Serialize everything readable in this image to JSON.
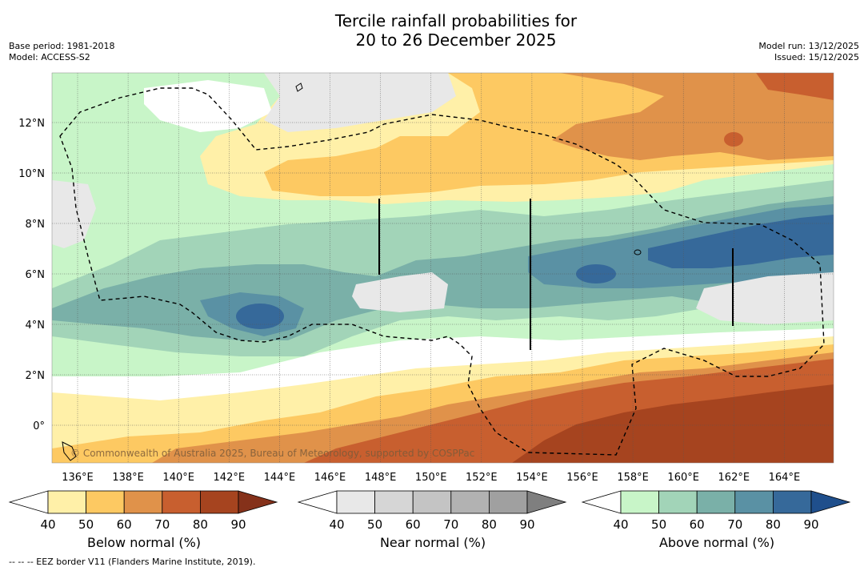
{
  "title": {
    "line1": "Tercile rainfall probabilities for",
    "line2": "20 to 26 December 2025"
  },
  "meta": {
    "base_period": "Base period: 1981-2018",
    "model": "Model: ACCESS-S2",
    "model_run": "Model run: 13/12/2025",
    "issued": "Issued: 15/12/2025"
  },
  "map": {
    "lon_ticks": [
      "136°E",
      "138°E",
      "140°E",
      "142°E",
      "144°E",
      "146°E",
      "148°E",
      "150°E",
      "152°E",
      "154°E",
      "156°E",
      "158°E",
      "160°E",
      "162°E",
      "164°E"
    ],
    "lat_ticks": [
      "12°N",
      "10°N",
      "8°N",
      "6°N",
      "4°N",
      "2°N",
      "0°"
    ],
    "copyright": "© Commonwealth of Australia 2025, Bureau of Meteorology, supported by COSPPac"
  },
  "colorbars": [
    {
      "label": "Below normal (%)",
      "ticks": [
        "40",
        "50",
        "60",
        "70",
        "80",
        "90"
      ],
      "colors": [
        "#ffffff",
        "#fff0a8",
        "#fdc962",
        "#e0924a",
        "#c85f2f",
        "#a6441f",
        "#85311a"
      ]
    },
    {
      "label": "Near normal (%)",
      "ticks": [
        "40",
        "50",
        "60",
        "70",
        "80",
        "90"
      ],
      "colors": [
        "#ffffff",
        "#e8e8e8",
        "#d6d6d6",
        "#c4c4c4",
        "#b2b2b2",
        "#a0a0a0",
        "#7f7f7f"
      ]
    },
    {
      "label": "Above normal (%)",
      "ticks": [
        "40",
        "50",
        "60",
        "70",
        "80",
        "90"
      ],
      "colors": [
        "#ffffff",
        "#c8f5c8",
        "#a2d4b8",
        "#7ab0a8",
        "#5a91a4",
        "#36699a",
        "#1f4f8c"
      ]
    }
  ],
  "footnote": "--  --  -- EEZ border V11 (Flanders Marine Institute, 2019)."
}
